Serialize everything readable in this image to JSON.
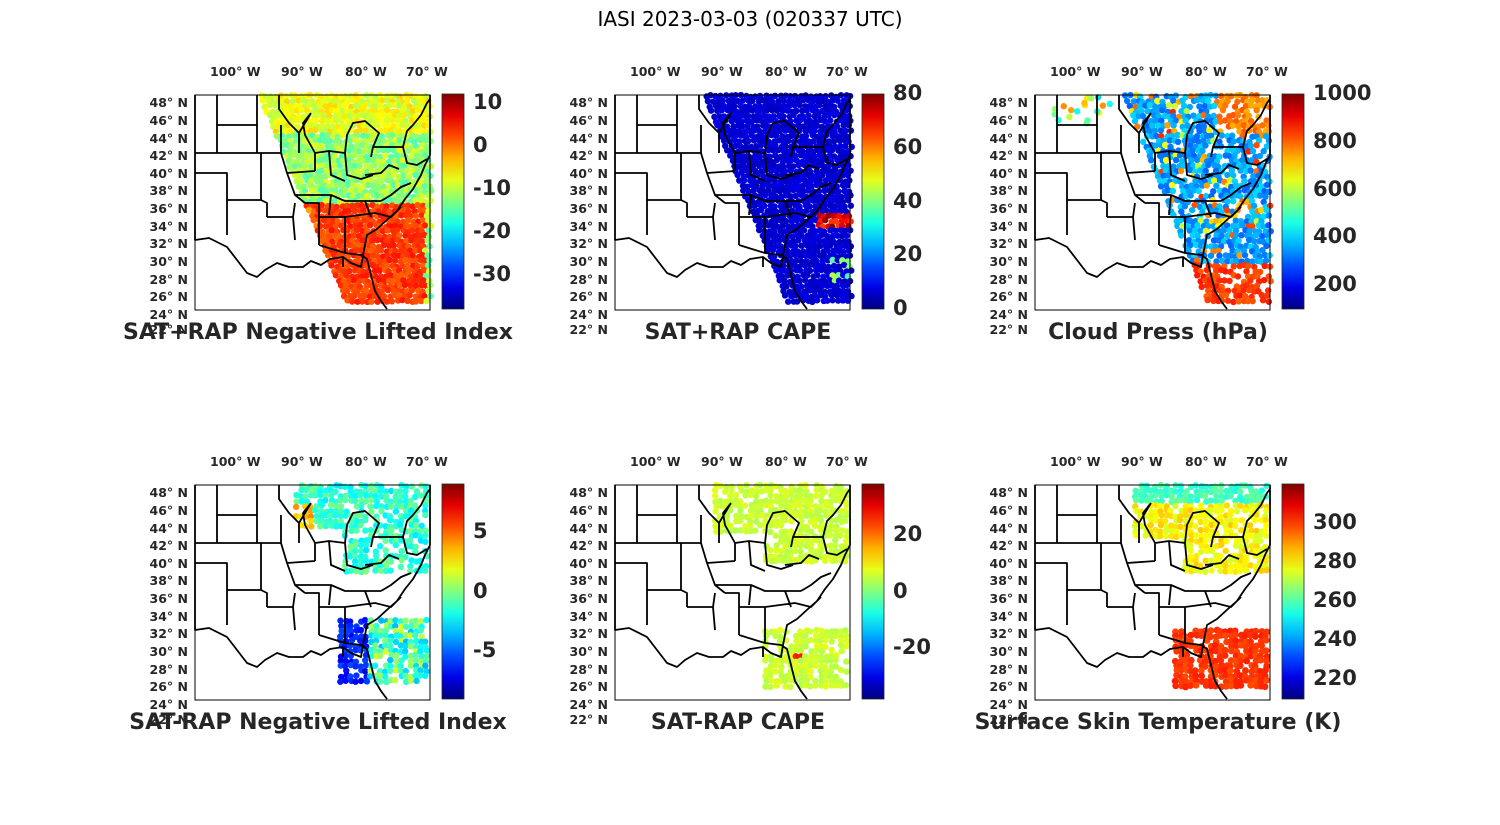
{
  "figure": {
    "title": "IASI 2023-03-03 (020337 UTC)"
  },
  "lon_ticks": [
    "100° W",
    "90° W",
    "80° W",
    "70° W"
  ],
  "lat_ticks": [
    "48° N",
    "46° N",
    "44° N",
    "42° N",
    "40° N",
    "38° N",
    "36° N",
    "34° N",
    "32° N",
    "30° N",
    "28° N",
    "26° N",
    "24° N",
    "22° N"
  ],
  "panels": [
    {
      "title": "SAT+RAP Negative Lifted Index",
      "colorbar_ticks": [
        "10",
        "0",
        "-10",
        "-20",
        "-30"
      ],
      "colormap": "jet",
      "range": [
        -38,
        12
      ]
    },
    {
      "title": "SAT+RAP CAPE",
      "colorbar_ticks": [
        "80",
        "60",
        "40",
        "20",
        "0"
      ],
      "colormap": "jet",
      "range": [
        0,
        80
      ]
    },
    {
      "title": "Cloud Press (hPa)",
      "colorbar_ticks": [
        "1000",
        "800",
        "600",
        "400",
        "200"
      ],
      "colormap": "jet",
      "range": [
        100,
        1000
      ]
    },
    {
      "title": "SAT-RAP Negative Lifted Index",
      "colorbar_ticks": [
        "5",
        "0",
        "-5"
      ],
      "colormap": "jet",
      "range": [
        -9,
        9
      ]
    },
    {
      "title": "SAT-RAP CAPE",
      "colorbar_ticks": [
        "20",
        "0",
        "-20"
      ],
      "colormap": "jet",
      "range": [
        -38,
        38
      ]
    },
    {
      "title": "Surface Skin Temperature (K)",
      "colorbar_ticks": [
        "300",
        "280",
        "260",
        "240",
        "220"
      ],
      "colormap": "jet",
      "range": [
        210,
        320
      ]
    }
  ],
  "colors": {
    "jet_low": "#00008f",
    "jet_mid": "#80ff80",
    "jet_high": "#800000",
    "border": "#000000"
  }
}
